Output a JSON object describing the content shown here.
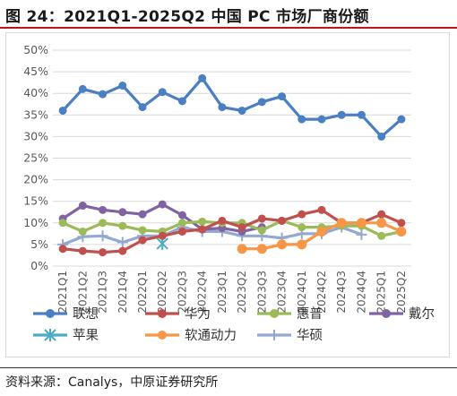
{
  "title": "图 24：2021Q1-2025Q2 中国 PC 市场厂商份额",
  "source": "资料来源：Canalys，中原证券研究所",
  "chart_data": {
    "type": "line",
    "title": "",
    "xlabel": "",
    "ylabel": "",
    "ylim": [
      0,
      50
    ],
    "y_ticks": [
      "0%",
      "5%",
      "10%",
      "15%",
      "20%",
      "25%",
      "30%",
      "35%",
      "40%",
      "45%",
      "50%"
    ],
    "grid": true,
    "legend_position": "bottom",
    "categories": [
      "2021Q1",
      "2021Q2",
      "2021Q3",
      "2021Q4",
      "2022Q1",
      "2022Q2",
      "2022Q3",
      "2022Q4",
      "2023Q1",
      "2023Q2",
      "2023Q3",
      "2023Q4",
      "2024Q1",
      "2024Q2",
      "2024Q3",
      "2024Q4",
      "2025Q1",
      "2025Q2"
    ],
    "series": [
      {
        "name": "联想",
        "color": "#4a7fc1",
        "marker": "circle",
        "values": [
          36,
          41,
          39.8,
          41.8,
          36.8,
          40.3,
          38.2,
          43.5,
          36.8,
          36,
          38,
          39.3,
          34,
          34,
          35,
          35,
          30,
          34
        ]
      },
      {
        "name": "华为",
        "color": "#c0504d",
        "marker": "circle",
        "values": [
          4,
          3.5,
          3.2,
          3.5,
          6,
          7,
          8,
          8.5,
          10.5,
          9,
          11,
          10.5,
          12,
          13,
          10,
          10,
          12,
          10
        ]
      },
      {
        "name": "惠普",
        "color": "#9bbb59",
        "marker": "circle",
        "values": [
          10,
          8,
          10,
          9.3,
          8.3,
          8,
          10,
          10.3,
          10,
          10,
          8.3,
          10.5,
          9,
          9,
          9.3,
          9.3,
          7,
          8
        ]
      },
      {
        "name": "戴尔",
        "color": "#8064a2",
        "marker": "circle",
        "values": [
          11,
          14,
          13,
          12.5,
          12,
          14.3,
          11.8,
          8.5,
          8.8,
          8,
          9,
          null,
          null,
          null,
          null,
          null,
          null,
          null
        ]
      },
      {
        "name": "苹果",
        "color": "#4bacc6",
        "marker": "asterisk",
        "values": [
          null,
          null,
          null,
          null,
          null,
          5.2,
          null,
          null,
          null,
          null,
          null,
          null,
          null,
          null,
          null,
          null,
          null,
          null
        ]
      },
      {
        "name": "软通动力",
        "color": "#f79646",
        "marker": "circle",
        "values": [
          null,
          null,
          null,
          null,
          null,
          null,
          null,
          null,
          null,
          4,
          4,
          5,
          5,
          8,
          10,
          10,
          10,
          8
        ]
      },
      {
        "name": "华硕",
        "color": "#93a9cf",
        "marker": "plus",
        "values": [
          5,
          6.8,
          7,
          5.5,
          7,
          7,
          9,
          8,
          8,
          7,
          7,
          6.5,
          7.5,
          7.5,
          9,
          7.3,
          null,
          null
        ]
      }
    ]
  }
}
